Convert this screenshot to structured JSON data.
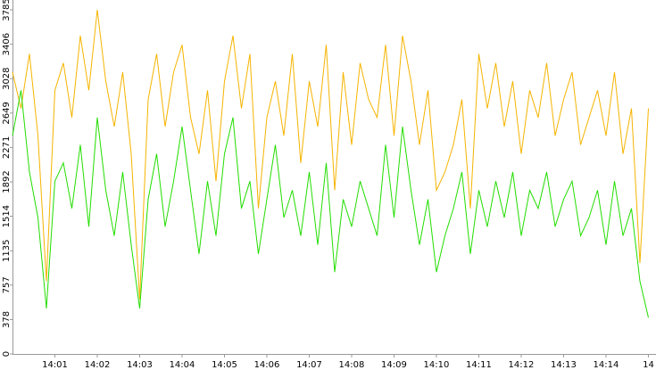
{
  "chart_data": {
    "type": "line",
    "x": [
      0,
      0.2,
      0.4,
      0.6,
      0.8,
      1,
      1.2,
      1.4,
      1.6,
      1.8,
      2,
      2.2,
      2.4,
      2.6,
      2.8,
      3,
      3.2,
      3.4,
      3.6,
      3.8,
      4,
      4.2,
      4.4,
      4.6,
      4.8,
      5,
      5.2,
      5.4,
      5.6,
      5.8,
      6,
      6.2,
      6.4,
      6.6,
      6.8,
      7,
      7.2,
      7.4,
      7.6,
      7.8,
      8,
      8.2,
      8.4,
      8.6,
      8.8,
      9,
      9.2,
      9.4,
      9.6,
      9.8,
      10,
      10.2,
      10.4,
      10.6,
      10.8,
      11,
      11.2,
      11.4,
      11.6,
      11.8,
      12,
      12.2,
      12.4,
      12.6,
      12.8,
      13,
      13.2,
      13.4,
      13.6,
      13.8,
      14,
      14.2,
      14.4,
      14.6,
      14.8,
      15
    ],
    "series": [
      {
        "color": "#f5b400",
        "values": [
          3100,
          2700,
          3300,
          2400,
          800,
          2900,
          3200,
          2600,
          3500,
          2900,
          3785,
          3000,
          2500,
          3100,
          2200,
          600,
          2800,
          3300,
          2500,
          3100,
          3400,
          2600,
          2200,
          2900,
          1900,
          3000,
          3500,
          2700,
          3300,
          1600,
          2600,
          3000,
          2400,
          3300,
          2100,
          3000,
          2500,
          3400,
          1800,
          3100,
          2300,
          3200,
          2800,
          2600,
          3400,
          2400,
          3500,
          3000,
          2300,
          2900,
          1800,
          2000,
          2300,
          2800,
          1600,
          3300,
          2700,
          3200,
          2500,
          3000,
          2200,
          2900,
          2600,
          3200,
          2400,
          2800,
          3100,
          2300,
          2600,
          2900,
          2400,
          3100,
          2200,
          2700,
          1000,
          2700
        ]
      },
      {
        "color": "#22dd00",
        "values": [
          2400,
          2900,
          2000,
          1500,
          500,
          1900,
          2100,
          1600,
          2300,
          1400,
          2600,
          1800,
          1300,
          2000,
          1200,
          500,
          1700,
          2200,
          1400,
          1900,
          2500,
          1800,
          1100,
          1900,
          1300,
          2200,
          2600,
          1600,
          1900,
          1100,
          1700,
          2300,
          1500,
          1800,
          1300,
          2000,
          1200,
          2100,
          900,
          1700,
          1400,
          1900,
          1600,
          1300,
          2300,
          1500,
          2500,
          1800,
          1200,
          1700,
          900,
          1300,
          1600,
          2000,
          1100,
          1800,
          1400,
          1900,
          1500,
          2000,
          1300,
          1800,
          1600,
          2000,
          1400,
          1700,
          1900,
          1300,
          1500,
          1800,
          1200,
          1900,
          1300,
          1600,
          800,
          400
        ]
      }
    ],
    "xlim": [
      0,
      15.18
    ],
    "xticks": [
      {
        "value": 1,
        "label": "14:01"
      },
      {
        "value": 2,
        "label": "14:02"
      },
      {
        "value": 3,
        "label": "14:03"
      },
      {
        "value": 4,
        "label": "14:04"
      },
      {
        "value": 5,
        "label": "14:05"
      },
      {
        "value": 6,
        "label": "14:06"
      },
      {
        "value": 7,
        "label": "14:07"
      },
      {
        "value": 8,
        "label": "14:08"
      },
      {
        "value": 9,
        "label": "14:09"
      },
      {
        "value": 10,
        "label": "14:10"
      },
      {
        "value": 11,
        "label": "14:11"
      },
      {
        "value": 12,
        "label": "14:12"
      },
      {
        "value": 13,
        "label": "14:13"
      },
      {
        "value": 14,
        "label": "14:14"
      },
      {
        "value": 15,
        "label": "14"
      }
    ],
    "ylim": [
      0,
      3785
    ],
    "yticks": [
      0,
      378,
      757,
      1135,
      1514,
      1892,
      2271,
      2649,
      3028,
      3406,
      3785
    ]
  }
}
